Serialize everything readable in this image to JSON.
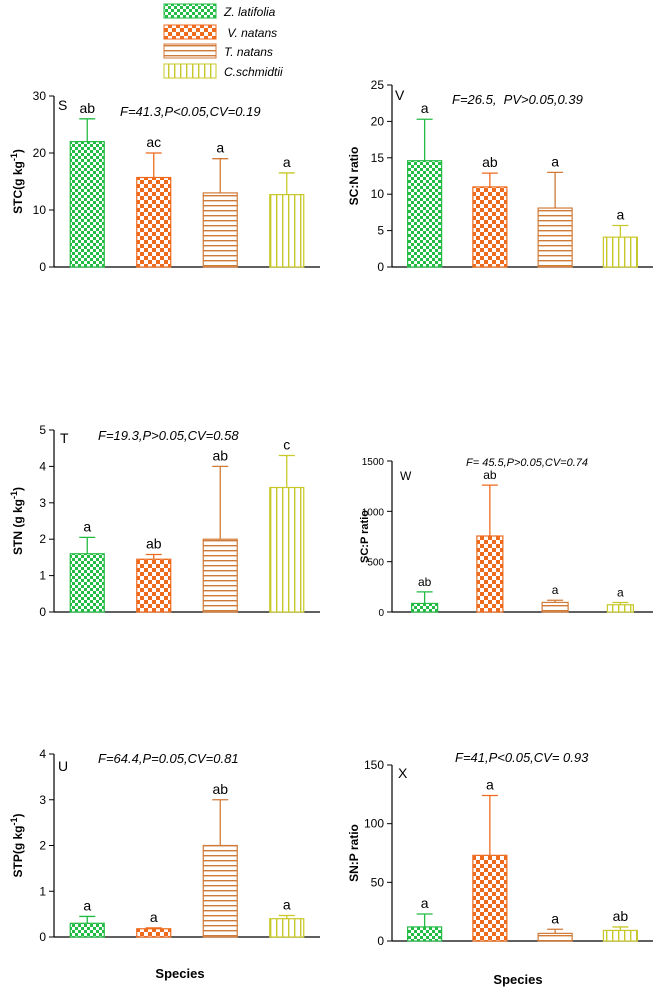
{
  "legend": [
    {
      "label": "Z. latifolia",
      "pattern": "checker",
      "color": "#22bb44"
    },
    {
      "label": " V. natans",
      "pattern": "checker",
      "color": "#ee6a1c"
    },
    {
      "label": "T. natans",
      "pattern": "hstripe",
      "color": "#d07a38"
    },
    {
      "label": "C.schmidtii",
      "pattern": "vstripe",
      "color": "#c8c82a"
    }
  ],
  "x_axis_label": "Species",
  "chart_data": [
    {
      "type": "bar",
      "panel": "S",
      "ylabel": "STC(g kg",
      "ylabel_sup": "-1",
      "ylabel_tail": ")",
      "stats": "F=41.3,P<0.05,CV=0.19",
      "ylim": [
        0,
        30
      ],
      "ticks": [
        "0",
        "10",
        "20",
        "30"
      ],
      "categories": [
        "Z. latifolia",
        "V. natans",
        "T. natans",
        "C.schmidtii"
      ],
      "values": [
        22,
        15.7,
        13,
        12.7
      ],
      "errors": [
        4,
        4.3,
        6,
        3.8
      ],
      "letters": [
        "ab",
        "ac",
        "a",
        "a"
      ]
    },
    {
      "type": "bar",
      "panel": "V",
      "ylabel": "SC:N ratio",
      "ylabel_sup": "",
      "ylabel_tail": "",
      "stats": "F=26.5,  PV>0.05,0.39",
      "ylim": [
        0,
        25
      ],
      "ticks": [
        "0",
        "5",
        "10",
        "15",
        "20",
        "25"
      ],
      "categories": [
        "Z. latifolia",
        "V. natans",
        "T. natans",
        "C.schmidtii"
      ],
      "values": [
        14.6,
        11,
        8.1,
        4.1
      ],
      "errors": [
        5.7,
        1.9,
        4.9,
        1.6
      ],
      "letters": [
        "a",
        "ab",
        "a",
        "a"
      ]
    },
    {
      "type": "bar",
      "panel": "T",
      "ylabel": "STN (g kg",
      "ylabel_sup": "-1",
      "ylabel_tail": ")",
      "stats": "F=19.3,P>0.05,CV=0.58",
      "ylim": [
        0,
        5
      ],
      "ticks": [
        "0",
        "1",
        "2",
        "3",
        "4",
        "5"
      ],
      "categories": [
        "Z. latifolia",
        "V. natans",
        "T. natans",
        "C.schmidtii"
      ],
      "values": [
        1.6,
        1.45,
        2,
        3.42
      ],
      "errors": [
        0.45,
        0.13,
        2,
        0.88
      ],
      "letters": [
        "a",
        "ab",
        "ab",
        "c"
      ]
    },
    {
      "type": "bar",
      "panel": "W",
      "ylabel": "SC:P ratio",
      "ylabel_sup": "",
      "ylabel_tail": "",
      "stats": "F= 45.5,P>0.05,CV=0.74",
      "ylim": [
        0,
        1500
      ],
      "ticks": [
        "0",
        "500",
        "1000",
        "1500"
      ],
      "categories": [
        "Z. latifolia",
        "V. natans",
        "T. natans",
        "C.schmidtii"
      ],
      "values": [
        85,
        755,
        95,
        72
      ],
      "errors": [
        115,
        505,
        22,
        22
      ],
      "letters": [
        "ab",
        "ab",
        "a",
        "a"
      ]
    },
    {
      "type": "bar",
      "panel": "U",
      "ylabel": "STP(g kg",
      "ylabel_sup": "-1",
      "ylabel_tail": ")",
      "stats": "F=64.4,P=0.05,CV=0.81",
      "ylim": [
        0,
        4
      ],
      "ticks": [
        "0",
        "1",
        "2",
        "3",
        "4"
      ],
      "categories": [
        "Z. latifolia",
        "V. natans",
        "T. natans",
        "C.schmidtii"
      ],
      "values": [
        0.3,
        0.18,
        2,
        0.4
      ],
      "errors": [
        0.15,
        0.02,
        1,
        0.07
      ],
      "letters": [
        "a",
        "a",
        "ab",
        "a"
      ]
    },
    {
      "type": "bar",
      "panel": "X",
      "ylabel": "SN:P ratio",
      "ylabel_sup": "",
      "ylabel_tail": "",
      "stats": "F=41,P<0.05,CV= 0.93",
      "ylim": [
        0,
        150
      ],
      "ticks": [
        "0",
        "50",
        "100",
        "150"
      ],
      "categories": [
        "Z. latifolia",
        "V. natans",
        "T. natans",
        "C.schmidtii"
      ],
      "values": [
        12,
        73,
        6.5,
        9
      ],
      "errors": [
        11,
        51,
        3.5,
        3
      ],
      "letters": [
        "a",
        "a",
        "a",
        "ab"
      ]
    }
  ]
}
